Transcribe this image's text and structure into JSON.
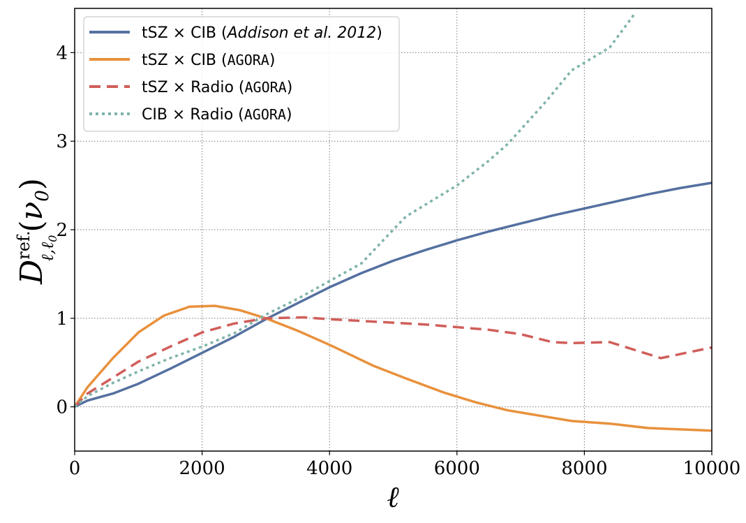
{
  "chart_data": {
    "type": "line",
    "title": "",
    "xlabel": "ℓ",
    "ylabel": "D^{ref.}_{ℓ,ℓ0}(ν0)",
    "xlim": [
      0,
      10000
    ],
    "ylim": [
      -0.5,
      4.5
    ],
    "x_ticks": [
      0,
      2000,
      4000,
      6000,
      8000,
      10000
    ],
    "x_tick_labels": [
      "0",
      "2000",
      "4000",
      "6000",
      "8000",
      "10000"
    ],
    "y_ticks": [
      0,
      1,
      2,
      3,
      4
    ],
    "y_tick_labels": [
      "0",
      "1",
      "2",
      "3",
      "4"
    ],
    "grid": true,
    "legend_location": "top-left",
    "ylabel_parts": {
      "main": "D",
      "sup": "ref.",
      "sub": "ℓ,ℓ",
      "sub0": "0",
      "paren_open": "(",
      "nu": "ν",
      "nu_sub": "0",
      "paren_close": ")"
    },
    "series": [
      {
        "name": "tSZ × CIB (Addison et al. 2012)",
        "legend_prefix": "tSZ × CIB (",
        "legend_italic": "Addison et al. 2012",
        "legend_suffix": ")",
        "color": "#5470a0",
        "style": "solid",
        "x": [
          0,
          200,
          600,
          1000,
          1500,
          2000,
          2500,
          3000,
          3500,
          4000,
          4500,
          5000,
          5500,
          6000,
          6500,
          7000,
          7500,
          8000,
          8500,
          9000,
          9500,
          10000
        ],
        "y": [
          0,
          0.07,
          0.15,
          0.26,
          0.43,
          0.61,
          0.79,
          0.99,
          1.17,
          1.35,
          1.51,
          1.65,
          1.77,
          1.88,
          1.98,
          2.07,
          2.16,
          2.24,
          2.32,
          2.4,
          2.47,
          2.53
        ]
      },
      {
        "name": "tSZ × CIB (AGORA)",
        "legend_prefix": "tSZ × CIB (",
        "legend_mono": "AGORA",
        "legend_suffix": ")",
        "color": "#e8913d",
        "style": "solid",
        "x": [
          0,
          200,
          600,
          1000,
          1400,
          1800,
          2200,
          2600,
          3000,
          3500,
          4000,
          4700,
          5200,
          5800,
          6300,
          6800,
          7300,
          7800,
          8400,
          9000,
          10000
        ],
        "y": [
          0,
          0.22,
          0.55,
          0.84,
          1.03,
          1.13,
          1.14,
          1.09,
          1.0,
          0.86,
          0.7,
          0.46,
          0.32,
          0.16,
          0.05,
          -0.04,
          -0.1,
          -0.16,
          -0.19,
          -0.24,
          -0.27
        ]
      },
      {
        "name": "tSZ × Radio (AGORA)",
        "legend_prefix": "tSZ × Radio (",
        "legend_mono": "AGORA",
        "legend_suffix": ")",
        "color": "#d05e5a",
        "style": "dashed",
        "x": [
          0,
          200,
          600,
          1000,
          1500,
          2000,
          2500,
          3000,
          3600,
          4000,
          4500,
          5000,
          5500,
          6000,
          6500,
          7000,
          7500,
          7800,
          8400,
          9200,
          10000
        ],
        "y": [
          0,
          0.15,
          0.33,
          0.51,
          0.68,
          0.84,
          0.94,
          1.0,
          1.01,
          0.99,
          0.97,
          0.95,
          0.93,
          0.9,
          0.87,
          0.82,
          0.73,
          0.72,
          0.73,
          0.55,
          0.67
        ]
      },
      {
        "name": "CIB × Radio (AGORA)",
        "legend_prefix": "CIB × Radio (",
        "legend_mono": "AGORA",
        "legend_suffix": ")",
        "color": "#7fb3ab",
        "style": "dotted",
        "x": [
          0,
          200,
          600,
          1000,
          1500,
          2000,
          2500,
          3000,
          3500,
          4000,
          4500,
          5000,
          5200,
          6000,
          6500,
          6800,
          7400,
          7800,
          8400,
          8800
        ],
        "y": [
          0,
          0.12,
          0.27,
          0.4,
          0.55,
          0.68,
          0.83,
          1.04,
          1.22,
          1.42,
          1.62,
          2.0,
          2.15,
          2.5,
          2.78,
          2.97,
          3.45,
          3.8,
          4.06,
          4.45
        ]
      }
    ]
  }
}
